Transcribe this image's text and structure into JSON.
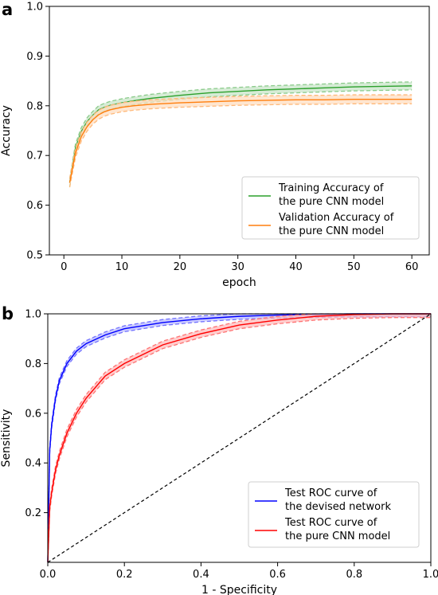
{
  "chart_data": [
    {
      "panel": "a",
      "type": "line",
      "xlabel": "epoch",
      "ylabel": "Accuracy",
      "xlim": [
        -2.5,
        63
      ],
      "ylim": [
        0.5,
        1.0
      ],
      "xticks": [
        0,
        10,
        20,
        30,
        40,
        50,
        60
      ],
      "yticks": [
        0.5,
        0.6,
        0.7,
        0.8,
        0.9,
        1.0
      ],
      "grid": false,
      "legend_position": "lower-right",
      "series": [
        {
          "name": "Training Accuracy of the pure CNN model",
          "color": "#2ca02c",
          "x": [
            1,
            2,
            3,
            4,
            5,
            6,
            7,
            8,
            10,
            12,
            15,
            20,
            25,
            30,
            35,
            40,
            45,
            50,
            55,
            60
          ],
          "y": [
            0.645,
            0.715,
            0.748,
            0.768,
            0.781,
            0.792,
            0.797,
            0.801,
            0.806,
            0.81,
            0.815,
            0.821,
            0.826,
            0.829,
            0.832,
            0.834,
            0.836,
            0.838,
            0.839,
            0.84
          ],
          "band": 0.008
        },
        {
          "name": "Validation Accuracy of the pure CNN model",
          "color": "#ff7f0e",
          "x": [
            1,
            2,
            3,
            4,
            5,
            6,
            7,
            8,
            10,
            12,
            15,
            20,
            25,
            30,
            35,
            40,
            45,
            50,
            55,
            60
          ],
          "y": [
            0.645,
            0.705,
            0.738,
            0.758,
            0.772,
            0.782,
            0.788,
            0.792,
            0.797,
            0.8,
            0.803,
            0.806,
            0.808,
            0.81,
            0.811,
            0.812,
            0.812,
            0.813,
            0.813,
            0.813
          ],
          "band": 0.009
        }
      ]
    },
    {
      "panel": "b",
      "type": "line",
      "xlabel": "1 - Specificity",
      "ylabel": "Sensitivity",
      "xlim": [
        0.0,
        1.0
      ],
      "ylim": [
        0.0,
        1.0
      ],
      "xticks": [
        0.0,
        0.2,
        0.4,
        0.6,
        0.8,
        1.0
      ],
      "yticks": [
        0.2,
        0.4,
        0.6,
        0.8,
        1.0
      ],
      "grid": false,
      "legend_position": "lower-right",
      "series": [
        {
          "name": "Test ROC curve of the devised network",
          "color": "#0000ff",
          "x": [
            0.0,
            0.005,
            0.01,
            0.02,
            0.03,
            0.05,
            0.075,
            0.1,
            0.15,
            0.2,
            0.3,
            0.4,
            0.5,
            0.6,
            0.7,
            0.8,
            0.9,
            1.0
          ],
          "y": [
            0.0,
            0.45,
            0.55,
            0.66,
            0.73,
            0.8,
            0.85,
            0.88,
            0.915,
            0.94,
            0.965,
            0.98,
            0.99,
            0.995,
            0.998,
            1.0,
            1.0,
            1.0
          ],
          "band": 0.012
        },
        {
          "name": "Test ROC curve of the pure CNN model",
          "color": "#ff0000",
          "x": [
            0.0,
            0.005,
            0.01,
            0.02,
            0.03,
            0.05,
            0.075,
            0.1,
            0.15,
            0.2,
            0.3,
            0.4,
            0.5,
            0.6,
            0.7,
            0.8,
            0.9,
            1.0
          ],
          "y": [
            0.0,
            0.22,
            0.28,
            0.37,
            0.43,
            0.52,
            0.6,
            0.66,
            0.75,
            0.8,
            0.875,
            0.92,
            0.955,
            0.975,
            0.99,
            0.997,
            1.0,
            1.0
          ],
          "band": 0.015
        },
        {
          "name": "",
          "color": "#000000",
          "dashed": true,
          "x": [
            0.0,
            1.0
          ],
          "y": [
            0.0,
            1.0
          ]
        }
      ]
    }
  ]
}
